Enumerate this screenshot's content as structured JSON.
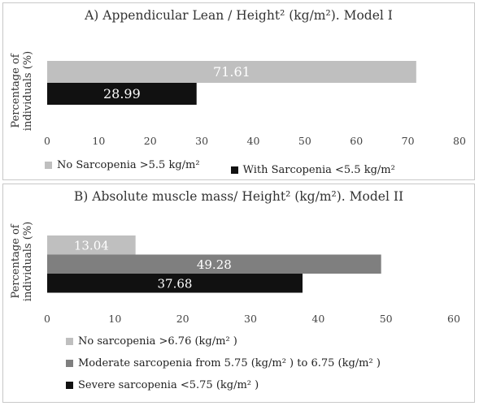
{
  "chart_data": [
    {
      "type": "bar",
      "orientation": "horizontal",
      "title": "A) Appendicular Lean / Height² (kg/m²). Model I",
      "ylabel": "Percentage of individuals (%)",
      "xlim": [
        0,
        80
      ],
      "xticks": [
        0,
        10,
        20,
        30,
        40,
        50,
        60,
        70,
        80
      ],
      "grid": false,
      "legend_position": "bottom",
      "series": [
        {
          "name": "No Sarcopenia >5.5 kg/m²",
          "value": 71.61,
          "color": "#bfbfbf",
          "label_color": "#ffffff"
        },
        {
          "name": "With Sarcopenia <5.5 kg/m²",
          "value": 28.99,
          "color": "#111111",
          "label_color": "#ffffff"
        }
      ]
    },
    {
      "type": "bar",
      "orientation": "horizontal",
      "title": "B) Absolute muscle mass/ Height² (kg/m²). Model II",
      "ylabel": "Percentage of individuals (%)",
      "xlim": [
        0,
        60
      ],
      "xticks": [
        0,
        10,
        20,
        30,
        40,
        50,
        60
      ],
      "grid": false,
      "legend_position": "bottom",
      "series": [
        {
          "name": "No sarcopenia >6.76  (kg/m² )",
          "value": 13.04,
          "color": "#bfbfbf",
          "label_color": "#ffffff"
        },
        {
          "name": "Moderate sarcopenia from 5.75 (kg/m² ) to 6.75 (kg/m² )",
          "value": 49.28,
          "color": "#7f7f7f",
          "label_color": "#ffffff"
        },
        {
          "name": "Severe sarcopenia <5.75 (kg/m² )",
          "value": 37.68,
          "color": "#111111",
          "label_color": "#ffffff"
        }
      ]
    }
  ]
}
